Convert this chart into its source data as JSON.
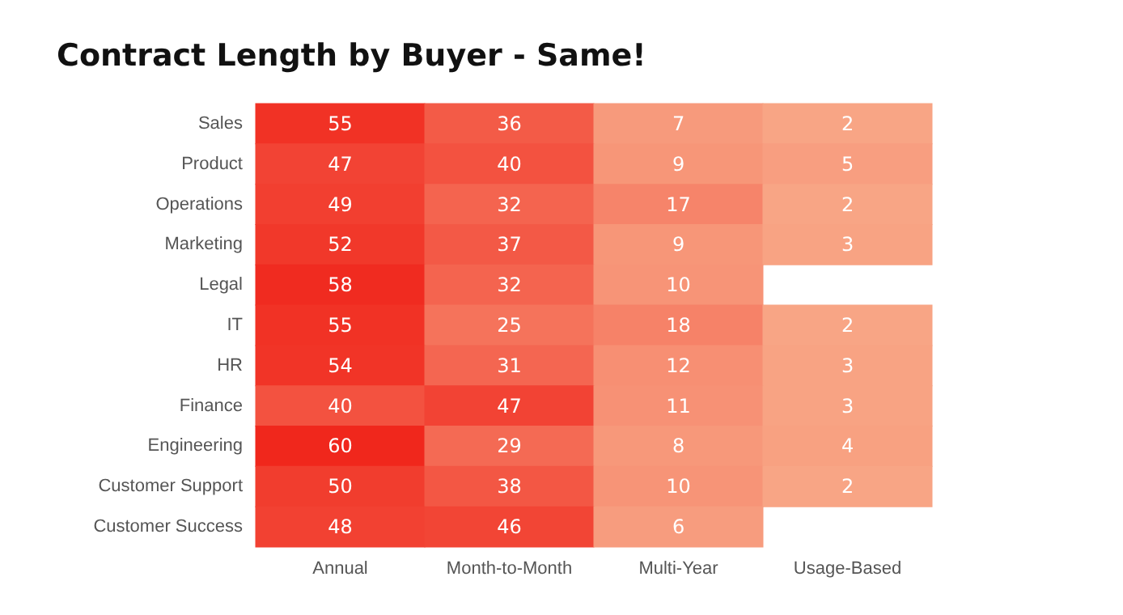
{
  "chart_data": {
    "type": "heatmap",
    "title": "Contract Length by Buyer - Same!",
    "categories": [
      "Annual",
      "Month-to-Month",
      "Multi-Year",
      "Usage-Based"
    ],
    "y_categories": [
      "Sales",
      "Product",
      "Operations",
      "Marketing",
      "Legal",
      "IT",
      "HR",
      "Finance",
      "Engineering",
      "Customer Support",
      "Customer Success"
    ],
    "cells": [
      [
        55,
        36,
        7,
        2
      ],
      [
        47,
        40,
        9,
        5
      ],
      [
        49,
        32,
        17,
        2
      ],
      [
        52,
        37,
        9,
        3
      ],
      [
        58,
        32,
        10,
        null
      ],
      [
        55,
        25,
        18,
        2
      ],
      [
        54,
        31,
        12,
        3
      ],
      [
        40,
        47,
        11,
        3
      ],
      [
        60,
        29,
        8,
        4
      ],
      [
        50,
        38,
        10,
        2
      ],
      [
        48,
        46,
        6,
        null
      ]
    ],
    "data_labels": true
  }
}
